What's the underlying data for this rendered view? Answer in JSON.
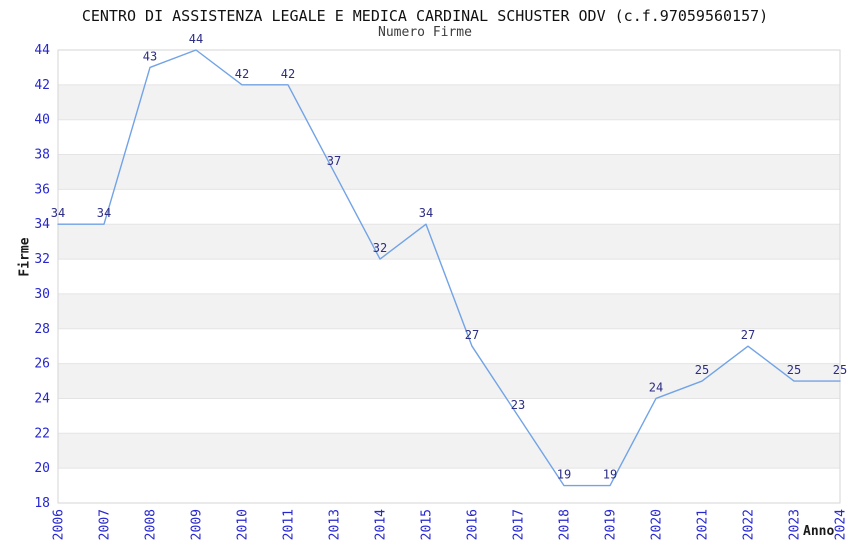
{
  "chart_data": {
    "type": "line",
    "title": "CENTRO DI ASSISTENZA LEGALE E MEDICA CARDINAL SCHUSTER ODV (c.f.97059560157)",
    "subtitle": "Numero Firme",
    "xlabel": "Anno",
    "ylabel": "Firme",
    "categories": [
      "2006",
      "2007",
      "2008",
      "2009",
      "2010",
      "2011",
      "2013",
      "2014",
      "2015",
      "2016",
      "2017",
      "2018",
      "2019",
      "2020",
      "2021",
      "2022",
      "2023",
      "2024"
    ],
    "values": [
      34,
      34,
      43,
      44,
      42,
      42,
      37,
      32,
      34,
      27,
      23,
      19,
      19,
      24,
      25,
      27,
      25,
      25
    ],
    "ylim": [
      18,
      44
    ],
    "ytick_step": 2,
    "x_tick_rotation_deg": -90,
    "grid": "horizontal-bands-every-2-units",
    "legend": "none",
    "point_labels_visible": true,
    "colors": {
      "line": "#72a3e6",
      "point_label": "#2d2d85",
      "tick_label": "#2727cf",
      "band": "#f2f2f2",
      "gridline": "#e4e4e4",
      "plot_border": "#d6d6d6"
    }
  }
}
